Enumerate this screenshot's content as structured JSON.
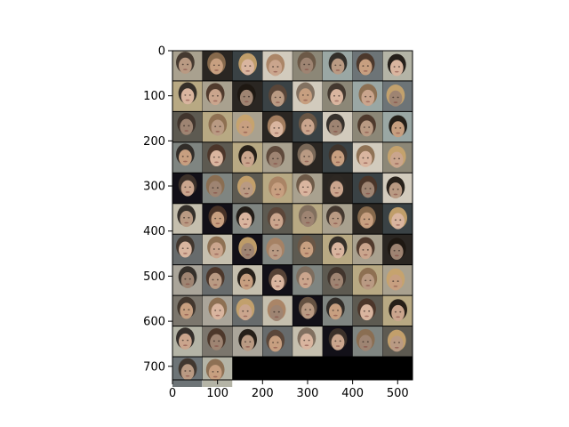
{
  "figure": {
    "background": "#ffffff",
    "image_background": "#000000",
    "frame_color": "#000000"
  },
  "image_grid": {
    "columns": 8,
    "rows": 11,
    "tile_count": 82,
    "tile_size": 66,
    "content": "celebrity face samples"
  },
  "axes": {
    "x": {
      "ticks": [
        "0",
        "100",
        "200",
        "300",
        "400",
        "500"
      ],
      "range": [
        0,
        533
      ]
    },
    "y": {
      "ticks": [
        "0",
        "100",
        "200",
        "300",
        "400",
        "500",
        "600",
        "700"
      ],
      "range": [
        0,
        730
      ]
    }
  },
  "tile_palette": {
    "background": [
      "#a9a18f",
      "#7f8581",
      "#676b6c",
      "#b4b4a6",
      "#8c8777",
      "#2a2622",
      "#5d5a51",
      "#c5bfae",
      "#7b766d",
      "#9aa7a4",
      "#3a4245",
      "#b8a983",
      "#121018",
      "#aaa59a",
      "#6d7477",
      "#d2cbbd"
    ],
    "skin": [
      "#b99a83",
      "#d1ad91",
      "#9e8472",
      "#e0b18f",
      "#caa58d",
      "#ad8f7b",
      "#d9b59f",
      "#a27f6c",
      "#c79f80",
      "#b48b71"
    ],
    "hair": [
      "#3f342b",
      "#1d1712",
      "#6a5645",
      "#8b6d4f",
      "#5b4638",
      "#2d2824",
      "#c7a36d",
      "#7d6b5c",
      "#4b3528",
      "#a98263"
    ]
  }
}
